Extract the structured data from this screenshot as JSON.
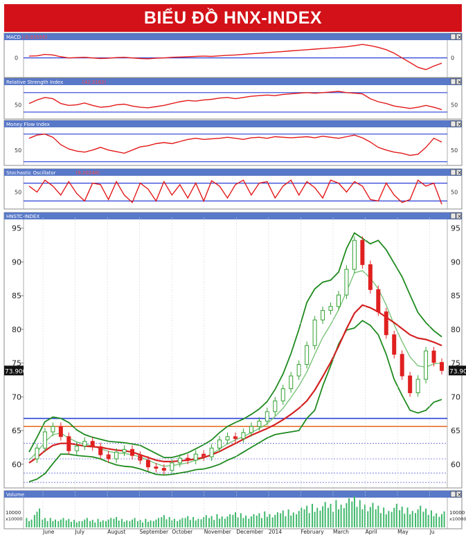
{
  "banner": {
    "title": "BIỂU ĐỒ HNX-INDEX"
  },
  "panels": {
    "macd": {
      "title": "MACD",
      "reading": "(-0.93556)",
      "tick_label": "0"
    },
    "rsi": {
      "title": "Relative Strength Index",
      "reading": "(42.3162)",
      "tick_label": "50"
    },
    "mfi": {
      "title": "Money Flow Index",
      "tick_label": "50"
    },
    "stoch": {
      "title": "Stochastic Oscillator",
      "reading": "(9.20246)",
      "tick_label": "50"
    },
    "price": {
      "title": "HNSTC-INDEX",
      "last_price": "73.900"
    },
    "volume": {
      "title": "Volume",
      "tick_top": "10000",
      "tick_unit": "x10000"
    }
  },
  "colors": {
    "panel_header_bg": "#5878c8",
    "candle_up": "#30a030",
    "candle_down": "#e02020",
    "bollinger": "#1d8a1d",
    "moving_average_long": "#d42020",
    "moving_average_short": "#70c070",
    "resistance_line": "#2a3fd6",
    "support_line": "#e8702a",
    "oscillator_line": "#e31818",
    "reference_line": "#2a3fd6"
  },
  "chart_data": {
    "type": "line",
    "x_axis_months": [
      "June",
      "July",
      "August",
      "September",
      "October",
      "November",
      "December",
      "2014",
      "February",
      "March",
      "April",
      "May",
      "Ju"
    ],
    "y_ticks": [
      60,
      65,
      70,
      75,
      80,
      85,
      90,
      95
    ],
    "ylim": [
      57,
      96
    ],
    "horizontal_levels": {
      "resistance": 66.8,
      "support": 65.6,
      "dotted": [
        63.1,
        60.8,
        58.7,
        57.3
      ]
    },
    "price_series": [
      {
        "month": "May-end",
        "value": 60.8
      },
      {
        "month": "Jun-a",
        "value": 62.4
      },
      {
        "month": "Jun-b",
        "value": 64.8
      },
      {
        "month": "Jun-c",
        "value": 65.6
      },
      {
        "month": "Jun-d",
        "value": 64.1
      },
      {
        "month": "Jun-e",
        "value": 62.0
      },
      {
        "month": "Jul-a",
        "value": 62.7
      },
      {
        "month": "Jul-b",
        "value": 63.4
      },
      {
        "month": "Jul-c",
        "value": 62.6
      },
      {
        "month": "Jul-d",
        "value": 61.4
      },
      {
        "month": "Aug-a",
        "value": 60.8
      },
      {
        "month": "Aug-b",
        "value": 61.8
      },
      {
        "month": "Aug-c",
        "value": 62.2
      },
      {
        "month": "Aug-d",
        "value": 61.3
      },
      {
        "month": "Aug-e",
        "value": 60.6
      },
      {
        "month": "Sep-a",
        "value": 59.6
      },
      {
        "month": "Sep-b",
        "value": 59.4
      },
      {
        "month": "Sep-c",
        "value": 59.1
      },
      {
        "month": "Sep-d",
        "value": 60.2
      },
      {
        "month": "Oct-a",
        "value": 60.9
      },
      {
        "month": "Oct-b",
        "value": 60.6
      },
      {
        "month": "Oct-c",
        "value": 61.5
      },
      {
        "month": "Oct-d",
        "value": 61.1
      },
      {
        "month": "Nov-a",
        "value": 62.4
      },
      {
        "month": "Nov-b",
        "value": 63.6
      },
      {
        "month": "Nov-c",
        "value": 64.1
      },
      {
        "month": "Nov-d",
        "value": 63.8
      },
      {
        "month": "Dec-a",
        "value": 64.7
      },
      {
        "month": "Dec-b",
        "value": 65.6
      },
      {
        "month": "Dec-c",
        "value": 66.4
      },
      {
        "month": "Dec-d",
        "value": 67.8
      },
      {
        "month": "Jan-a",
        "value": 69.4
      },
      {
        "month": "Jan-b",
        "value": 71.2
      },
      {
        "month": "Jan-c",
        "value": 73.1
      },
      {
        "month": "Jan-d",
        "value": 74.8
      },
      {
        "month": "Feb-a",
        "value": 77.6
      },
      {
        "month": "Feb-b",
        "value": 81.4
      },
      {
        "month": "Feb-c",
        "value": 82.8
      },
      {
        "month": "Feb-d",
        "value": 83.4
      },
      {
        "month": "Mar-a",
        "value": 85.1
      },
      {
        "month": "Mar-b",
        "value": 88.9
      },
      {
        "month": "Mar-c",
        "value": 93.2
      },
      {
        "month": "Mar-d",
        "value": 89.6
      },
      {
        "month": "Apr-a",
        "value": 85.9
      },
      {
        "month": "Apr-b",
        "value": 82.6
      },
      {
        "month": "Apr-c",
        "value": 79.2
      },
      {
        "month": "Apr-d",
        "value": 76.3
      },
      {
        "month": "Apr-e",
        "value": 73.1
      },
      {
        "month": "May-a",
        "value": 70.6
      },
      {
        "month": "May-b",
        "value": 72.6
      },
      {
        "month": "May-c",
        "value": 76.8
      },
      {
        "month": "May-d",
        "value": 75.1
      },
      {
        "month": "Jun-end",
        "value": 73.9
      }
    ],
    "ma_long": [
      60.2,
      61.0,
      62.0,
      62.8,
      63.1,
      63.1,
      62.9,
      62.7,
      62.6,
      62.5,
      62.3,
      62.1,
      62.0,
      61.8,
      61.4,
      61.0,
      60.6,
      60.4,
      60.4,
      60.5,
      60.6,
      60.8,
      61.0,
      61.4,
      61.9,
      62.5,
      63.1,
      63.7,
      64.3,
      64.8,
      65.3,
      65.9,
      66.6,
      67.4,
      68.3,
      69.4,
      71.0,
      73.0,
      75.1,
      77.5,
      80.1,
      82.4,
      83.6,
      83.2,
      82.6,
      81.8,
      81.0,
      80.1,
      79.2,
      78.7,
      78.5,
      78.1,
      77.6
    ],
    "ma_short": [
      60.6,
      61.8,
      63.3,
      64.4,
      64.6,
      63.9,
      63.3,
      63.0,
      62.7,
      62.3,
      61.9,
      61.7,
      61.6,
      61.4,
      61.1,
      60.6,
      60.1,
      59.7,
      59.8,
      60.0,
      60.2,
      60.6,
      60.9,
      61.5,
      62.3,
      63.0,
      63.6,
      64.1,
      64.7,
      65.3,
      66.0,
      67.1,
      68.3,
      69.9,
      71.6,
      73.7,
      76.3,
      78.8,
      80.7,
      82.9,
      85.6,
      88.4,
      88.7,
      87.6,
      86.0,
      83.6,
      80.7,
      78.2,
      75.9,
      74.6,
      74.4,
      74.9,
      75.0
    ],
    "bollinger_upper": [
      61.8,
      64.0,
      66.3,
      67.0,
      66.8,
      66.2,
      65.1,
      64.4,
      64.0,
      63.7,
      63.4,
      63.3,
      63.2,
      63.0,
      62.8,
      62.2,
      61.6,
      61.0,
      61.0,
      61.3,
      61.7,
      62.3,
      62.9,
      63.6,
      64.7,
      65.6,
      66.2,
      66.7,
      67.4,
      68.2,
      69.3,
      71.1,
      73.4,
      76.4,
      80.0,
      84.0,
      86.0,
      87.0,
      87.3,
      88.5,
      92.0,
      94.3,
      93.5,
      92.7,
      93.2,
      91.8,
      89.8,
      87.8,
      85.1,
      82.5,
      81.0,
      79.8,
      78.9
    ],
    "bollinger_lower": [
      57.4,
      57.8,
      58.6,
      60.1,
      61.5,
      61.5,
      61.3,
      61.2,
      61.1,
      60.8,
      60.3,
      59.9,
      59.7,
      59.6,
      59.3,
      58.9,
      58.5,
      58.4,
      58.5,
      58.7,
      58.9,
      59.2,
      59.3,
      59.6,
      60.0,
      60.6,
      61.1,
      61.8,
      62.5,
      63.2,
      63.9,
      64.4,
      64.6,
      64.8,
      65.0,
      66.8,
      68.0,
      71.6,
      74.6,
      77.8,
      79.9,
      80.2,
      81.3,
      80.6,
      79.2,
      76.3,
      72.6,
      70.2,
      68.0,
      67.6,
      68.0,
      69.2,
      69.6
    ],
    "oscillators": {
      "macd": [
        0.3,
        0.35,
        0.6,
        0.5,
        0.2,
        0.0,
        0.05,
        0.1,
        0.0,
        -0.1,
        -0.05,
        0.05,
        0.1,
        0.0,
        -0.1,
        -0.15,
        -0.05,
        0.0,
        0.1,
        0.15,
        0.2,
        0.25,
        0.3,
        0.25,
        0.35,
        0.45,
        0.5,
        0.6,
        0.7,
        0.8,
        0.9,
        1.0,
        1.1,
        1.2,
        1.3,
        1.4,
        1.5,
        1.6,
        1.7,
        1.8,
        1.9,
        2.1,
        2.3,
        2.1,
        1.8,
        1.4,
        0.8,
        0.0,
        -0.8,
        -1.6,
        -2.0,
        -1.4,
        -0.9
      ],
      "rsi": [
        52,
        58,
        62,
        60,
        52,
        49,
        50,
        53,
        49,
        46,
        47,
        50,
        51,
        48,
        46,
        45,
        47,
        49,
        52,
        55,
        57,
        56,
        58,
        59,
        61,
        62,
        60,
        62,
        64,
        65,
        66,
        65,
        67,
        68,
        69,
        70,
        69,
        70,
        71,
        72,
        70,
        69,
        68,
        60,
        55,
        52,
        48,
        46,
        44,
        46,
        49,
        46,
        42
      ],
      "mfi": [
        72,
        78,
        80,
        74,
        60,
        52,
        48,
        46,
        50,
        55,
        50,
        47,
        44,
        50,
        56,
        58,
        62,
        64,
        62,
        66,
        70,
        72,
        70,
        71,
        72,
        74,
        72,
        70,
        73,
        74,
        72,
        75,
        74,
        73,
        74,
        75,
        73,
        76,
        74,
        72,
        75,
        78,
        73,
        65,
        55,
        50,
        46,
        44,
        40,
        42,
        55,
        72,
        65
      ],
      "stochastic": [
        70,
        50,
        90,
        70,
        40,
        85,
        45,
        20,
        80,
        75,
        25,
        85,
        40,
        15,
        80,
        60,
        20,
        85,
        40,
        75,
        30,
        80,
        20,
        88,
        70,
        30,
        75,
        90,
        40,
        80,
        85,
        30,
        70,
        90,
        40,
        85,
        65,
        30,
        90,
        80,
        50,
        85,
        70,
        25,
        20,
        80,
        40,
        15,
        25,
        90,
        70,
        80,
        9
      ]
    },
    "volume": [
      1,
      2,
      1,
      1,
      1,
      0.9,
      0.8,
      1,
      0.8,
      0.9,
      1,
      1.1,
      0.9,
      1,
      0.8,
      0.9,
      1,
      1.3,
      1.1,
      1,
      1.2,
      1.1,
      1.3,
      1.2,
      1.4,
      1.4,
      1.6,
      1.5,
      1.4,
      1.5,
      1.7,
      1.6,
      1.8,
      1.9,
      2.1,
      2.3,
      2.5,
      2.7,
      2.5,
      2.9,
      3.1,
      3.3,
      2.9,
      2.6,
      2.3,
      2.1,
      2.5,
      2.2,
      2.1,
      2.3,
      2.0,
      1.8,
      1.7
    ]
  }
}
